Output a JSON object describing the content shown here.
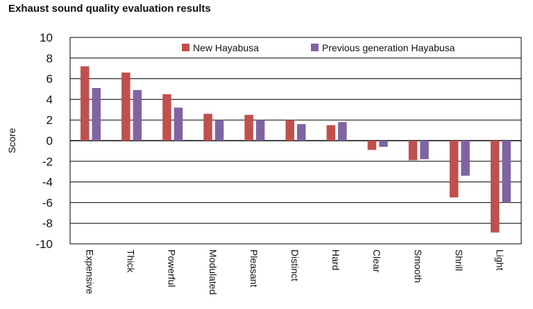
{
  "chart_data": {
    "type": "bar",
    "title": "Exhaust sound quality evaluation results",
    "xlabel": "",
    "ylabel": "Score",
    "ylim": [
      -10,
      10
    ],
    "yticks": [
      10,
      8,
      6,
      4,
      2,
      0,
      -2,
      -4,
      -6,
      -8,
      -10
    ],
    "grid": true,
    "legend_position": "top-right",
    "categories": [
      "Expensive",
      "Thick",
      "Powerful",
      "Modulated",
      "Pleasant",
      "Distinct",
      "Hard",
      "Clear",
      "Smooth",
      "Shrill",
      "Light"
    ],
    "series": [
      {
        "name": "New Hayabusa",
        "color": "#c0504d",
        "values": [
          7.2,
          6.6,
          4.5,
          2.6,
          2.5,
          2.0,
          1.5,
          -0.9,
          -1.9,
          -5.5,
          -8.9
        ]
      },
      {
        "name": "Previous generation Hayabusa",
        "color": "#8064a2",
        "values": [
          5.1,
          4.9,
          3.2,
          2.0,
          2.0,
          1.6,
          1.8,
          -0.6,
          -1.8,
          -3.4,
          -6.0
        ]
      }
    ]
  }
}
